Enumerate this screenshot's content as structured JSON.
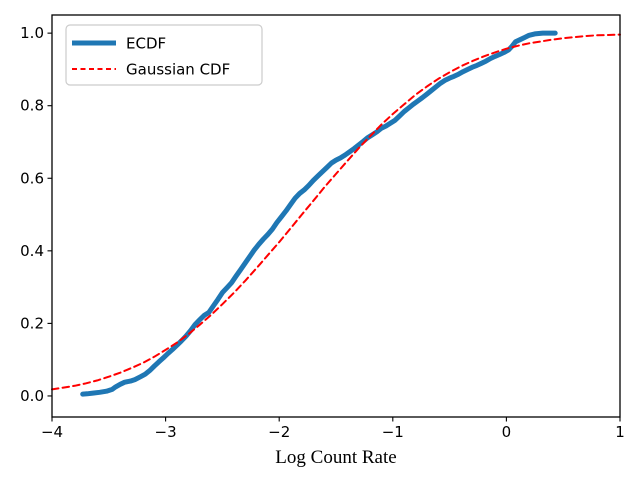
{
  "chart_data": {
    "type": "line",
    "title": "",
    "xlabel": "Log Count Rate",
    "ylabel": "",
    "xlim": [
      -4,
      1
    ],
    "ylim": [
      -0.058,
      1.05
    ],
    "grid": false,
    "legend_position": "upper-left",
    "xticks": [
      {
        "value": -4,
        "label": "−4"
      },
      {
        "value": -3,
        "label": "−3"
      },
      {
        "value": -2,
        "label": "−2"
      },
      {
        "value": -1,
        "label": "−1"
      },
      {
        "value": 0,
        "label": "0"
      },
      {
        "value": 1,
        "label": "1"
      }
    ],
    "yticks": [
      {
        "value": 0.0,
        "label": "0.0"
      },
      {
        "value": 0.2,
        "label": "0.2"
      },
      {
        "value": 0.4,
        "label": "0.4"
      },
      {
        "value": 0.6,
        "label": "0.6"
      },
      {
        "value": 0.8,
        "label": "0.8"
      },
      {
        "value": 1.0,
        "label": "1.0"
      }
    ],
    "series": [
      {
        "name": "ECDF",
        "label": "ECDF",
        "color": "#1f77b4",
        "style": "solid",
        "linewidth": 5,
        "points": [
          [
            -3.73,
            0.005
          ],
          [
            -3.69,
            0.006
          ],
          [
            -3.64,
            0.008
          ],
          [
            -3.58,
            0.01
          ],
          [
            -3.52,
            0.013
          ],
          [
            -3.47,
            0.018
          ],
          [
            -3.44,
            0.025
          ],
          [
            -3.4,
            0.032
          ],
          [
            -3.36,
            0.038
          ],
          [
            -3.31,
            0.041
          ],
          [
            -3.27,
            0.045
          ],
          [
            -3.22,
            0.053
          ],
          [
            -3.18,
            0.06
          ],
          [
            -3.14,
            0.07
          ],
          [
            -3.1,
            0.082
          ],
          [
            -3.06,
            0.094
          ],
          [
            -3.02,
            0.105
          ],
          [
            -2.98,
            0.117
          ],
          [
            -2.94,
            0.128
          ],
          [
            -2.9,
            0.14
          ],
          [
            -2.86,
            0.152
          ],
          [
            -2.82,
            0.165
          ],
          [
            -2.78,
            0.18
          ],
          [
            -2.74,
            0.197
          ],
          [
            -2.7,
            0.21
          ],
          [
            -2.66,
            0.222
          ],
          [
            -2.62,
            0.23
          ],
          [
            -2.58,
            0.248
          ],
          [
            -2.54,
            0.266
          ],
          [
            -2.5,
            0.285
          ],
          [
            -2.46,
            0.298
          ],
          [
            -2.42,
            0.312
          ],
          [
            -2.38,
            0.33
          ],
          [
            -2.34,
            0.348
          ],
          [
            -2.3,
            0.366
          ],
          [
            -2.26,
            0.384
          ],
          [
            -2.22,
            0.402
          ],
          [
            -2.18,
            0.418
          ],
          [
            -2.14,
            0.432
          ],
          [
            -2.1,
            0.445
          ],
          [
            -2.06,
            0.46
          ],
          [
            -2.02,
            0.478
          ],
          [
            -1.98,
            0.494
          ],
          [
            -1.94,
            0.51
          ],
          [
            -1.9,
            0.528
          ],
          [
            -1.86,
            0.545
          ],
          [
            -1.82,
            0.558
          ],
          [
            -1.78,
            0.568
          ],
          [
            -1.74,
            0.58
          ],
          [
            -1.7,
            0.594
          ],
          [
            -1.66,
            0.606
          ],
          [
            -1.62,
            0.618
          ],
          [
            -1.58,
            0.63
          ],
          [
            -1.54,
            0.642
          ],
          [
            -1.5,
            0.65
          ],
          [
            -1.46,
            0.656
          ],
          [
            -1.42,
            0.664
          ],
          [
            -1.38,
            0.673
          ],
          [
            -1.34,
            0.682
          ],
          [
            -1.3,
            0.692
          ],
          [
            -1.26,
            0.702
          ],
          [
            -1.22,
            0.712
          ],
          [
            -1.18,
            0.72
          ],
          [
            -1.14,
            0.728
          ],
          [
            -1.1,
            0.738
          ],
          [
            -1.06,
            0.744
          ],
          [
            -1.02,
            0.752
          ],
          [
            -0.98,
            0.76
          ],
          [
            -0.94,
            0.772
          ],
          [
            -0.9,
            0.784
          ],
          [
            -0.86,
            0.794
          ],
          [
            -0.82,
            0.804
          ],
          [
            -0.78,
            0.813
          ],
          [
            -0.74,
            0.822
          ],
          [
            -0.7,
            0.832
          ],
          [
            -0.66,
            0.842
          ],
          [
            -0.62,
            0.852
          ],
          [
            -0.58,
            0.862
          ],
          [
            -0.54,
            0.87
          ],
          [
            -0.5,
            0.876
          ],
          [
            -0.46,
            0.881
          ],
          [
            -0.42,
            0.887
          ],
          [
            -0.38,
            0.894
          ],
          [
            -0.34,
            0.9
          ],
          [
            -0.3,
            0.906
          ],
          [
            -0.26,
            0.911
          ],
          [
            -0.22,
            0.917
          ],
          [
            -0.18,
            0.923
          ],
          [
            -0.14,
            0.93
          ],
          [
            -0.1,
            0.936
          ],
          [
            -0.06,
            0.941
          ],
          [
            -0.02,
            0.947
          ],
          [
            0.02,
            0.954
          ],
          [
            0.05,
            0.964
          ],
          [
            0.08,
            0.976
          ],
          [
            0.12,
            0.982
          ],
          [
            0.16,
            0.988
          ],
          [
            0.2,
            0.994
          ],
          [
            0.25,
            0.998
          ],
          [
            0.32,
            1.0
          ],
          [
            0.43,
            1.0
          ]
        ]
      },
      {
        "name": "Gaussian CDF",
        "label": "Gaussian CDF",
        "color": "#ff0000",
        "style": "dashed",
        "linewidth": 2,
        "mean": -1.8,
        "sigma": 1.05,
        "points": [
          [
            -4.0,
            0.018
          ],
          [
            -3.9,
            0.023
          ],
          [
            -3.8,
            0.028
          ],
          [
            -3.7,
            0.035
          ],
          [
            -3.6,
            0.043
          ],
          [
            -3.5,
            0.053
          ],
          [
            -3.4,
            0.064
          ],
          [
            -3.3,
            0.077
          ],
          [
            -3.2,
            0.091
          ],
          [
            -3.1,
            0.108
          ],
          [
            -3.0,
            0.127
          ],
          [
            -2.9,
            0.147
          ],
          [
            -2.8,
            0.17
          ],
          [
            -2.7,
            0.196
          ],
          [
            -2.6,
            0.223
          ],
          [
            -2.5,
            0.253
          ],
          [
            -2.4,
            0.284
          ],
          [
            -2.3,
            0.317
          ],
          [
            -2.2,
            0.352
          ],
          [
            -2.1,
            0.388
          ],
          [
            -2.0,
            0.424
          ],
          [
            -1.9,
            0.462
          ],
          [
            -1.8,
            0.5
          ],
          [
            -1.7,
            0.538
          ],
          [
            -1.6,
            0.576
          ],
          [
            -1.5,
            0.612
          ],
          [
            -1.4,
            0.648
          ],
          [
            -1.3,
            0.683
          ],
          [
            -1.2,
            0.716
          ],
          [
            -1.1,
            0.748
          ],
          [
            -1.0,
            0.777
          ],
          [
            -0.9,
            0.804
          ],
          [
            -0.8,
            0.83
          ],
          [
            -0.7,
            0.853
          ],
          [
            -0.6,
            0.874
          ],
          [
            -0.5,
            0.892
          ],
          [
            -0.4,
            0.909
          ],
          [
            -0.3,
            0.923
          ],
          [
            -0.2,
            0.936
          ],
          [
            -0.1,
            0.947
          ],
          [
            0.0,
            0.957
          ],
          [
            0.1,
            0.965
          ],
          [
            0.2,
            0.972
          ],
          [
            0.3,
            0.977
          ],
          [
            0.4,
            0.982
          ],
          [
            0.5,
            0.986
          ],
          [
            0.6,
            0.989
          ],
          [
            0.7,
            0.992
          ],
          [
            0.8,
            0.994
          ],
          [
            0.9,
            0.995
          ],
          [
            1.0,
            0.996
          ]
        ]
      }
    ],
    "colors": {
      "ecdf_line": "#1f77b4",
      "gaussian_line": "#ff0000",
      "spine": "#000000",
      "legend_border": "#cccccc",
      "background": "#ffffff"
    }
  }
}
